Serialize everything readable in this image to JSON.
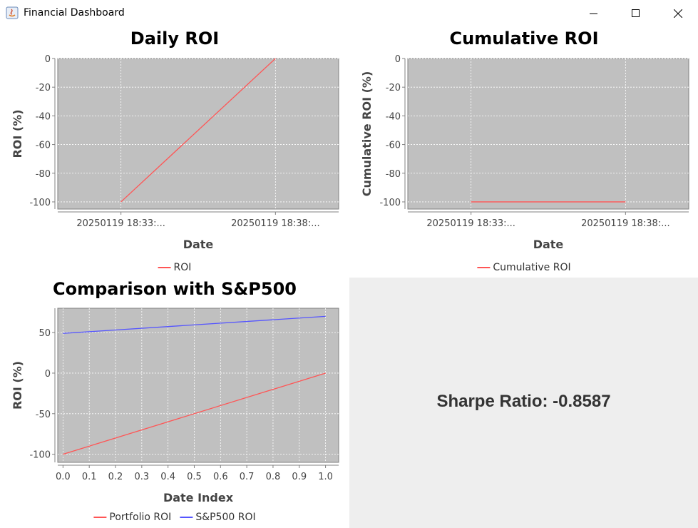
{
  "window": {
    "title": "Financial Dashboard",
    "controls": {
      "minimize": "minimize",
      "maximize": "maximize",
      "close": "close"
    }
  },
  "colors": {
    "plot_bg": "#c0c0c0",
    "red": "#ff5555",
    "blue": "#5555ff",
    "panel_gray": "#eeeeee"
  },
  "sharpe": {
    "text": "Sharpe Ratio: -0.8587"
  },
  "chart_data": [
    {
      "id": "daily",
      "type": "line",
      "title": "Daily ROI",
      "xlabel": "Date",
      "ylabel": "ROI (%)",
      "x": [
        "20250119 18:33:...",
        "20250119 18:38:..."
      ],
      "xticks": [
        "20250119 18:33:...",
        "20250119 18:38:..."
      ],
      "ylim": [
        -105,
        0
      ],
      "yticks": [
        0,
        -20,
        -40,
        -60,
        -80,
        -100
      ],
      "grid": true,
      "legend": "bottom",
      "series": [
        {
          "name": "ROI",
          "color": "#ff5555",
          "values": [
            -100,
            0
          ]
        }
      ]
    },
    {
      "id": "cumulative",
      "type": "line",
      "title": "Cumulative ROI",
      "xlabel": "Date",
      "ylabel": "Cumulative ROI (%)",
      "x": [
        "20250119 18:33:...",
        "20250119 18:38:..."
      ],
      "xticks": [
        "20250119 18:33:...",
        "20250119 18:38:..."
      ],
      "ylim": [
        -105,
        0
      ],
      "yticks": [
        0,
        -20,
        -40,
        -60,
        -80,
        -100
      ],
      "grid": true,
      "legend": "bottom",
      "series": [
        {
          "name": "Cumulative ROI",
          "color": "#ff5555",
          "values": [
            -100,
            -100
          ]
        }
      ]
    },
    {
      "id": "comparison",
      "type": "line",
      "title": "Comparison with S&P500",
      "xlabel": "Date Index",
      "ylabel": "ROI (%)",
      "x": [
        0.0,
        1.0
      ],
      "xlim": [
        -0.02,
        1.05
      ],
      "xticks": [
        0.0,
        0.1,
        0.2,
        0.3,
        0.4,
        0.5,
        0.6,
        0.7,
        0.8,
        0.9,
        1.0
      ],
      "xtick_labels": [
        "0.0",
        "0.1",
        "0.2",
        "0.3",
        "0.4",
        "0.5",
        "0.6",
        "0.7",
        "0.8",
        "0.9",
        "1.0"
      ],
      "ylim": [
        -110,
        80
      ],
      "yticks": [
        50,
        0,
        -50,
        -100
      ],
      "grid": true,
      "legend": "bottom",
      "series": [
        {
          "name": "Portfolio ROI",
          "color": "#ff5555",
          "values": [
            -100,
            0
          ]
        },
        {
          "name": "S&P500 ROI",
          "color": "#5555ff",
          "values": [
            49,
            70
          ]
        }
      ]
    }
  ]
}
